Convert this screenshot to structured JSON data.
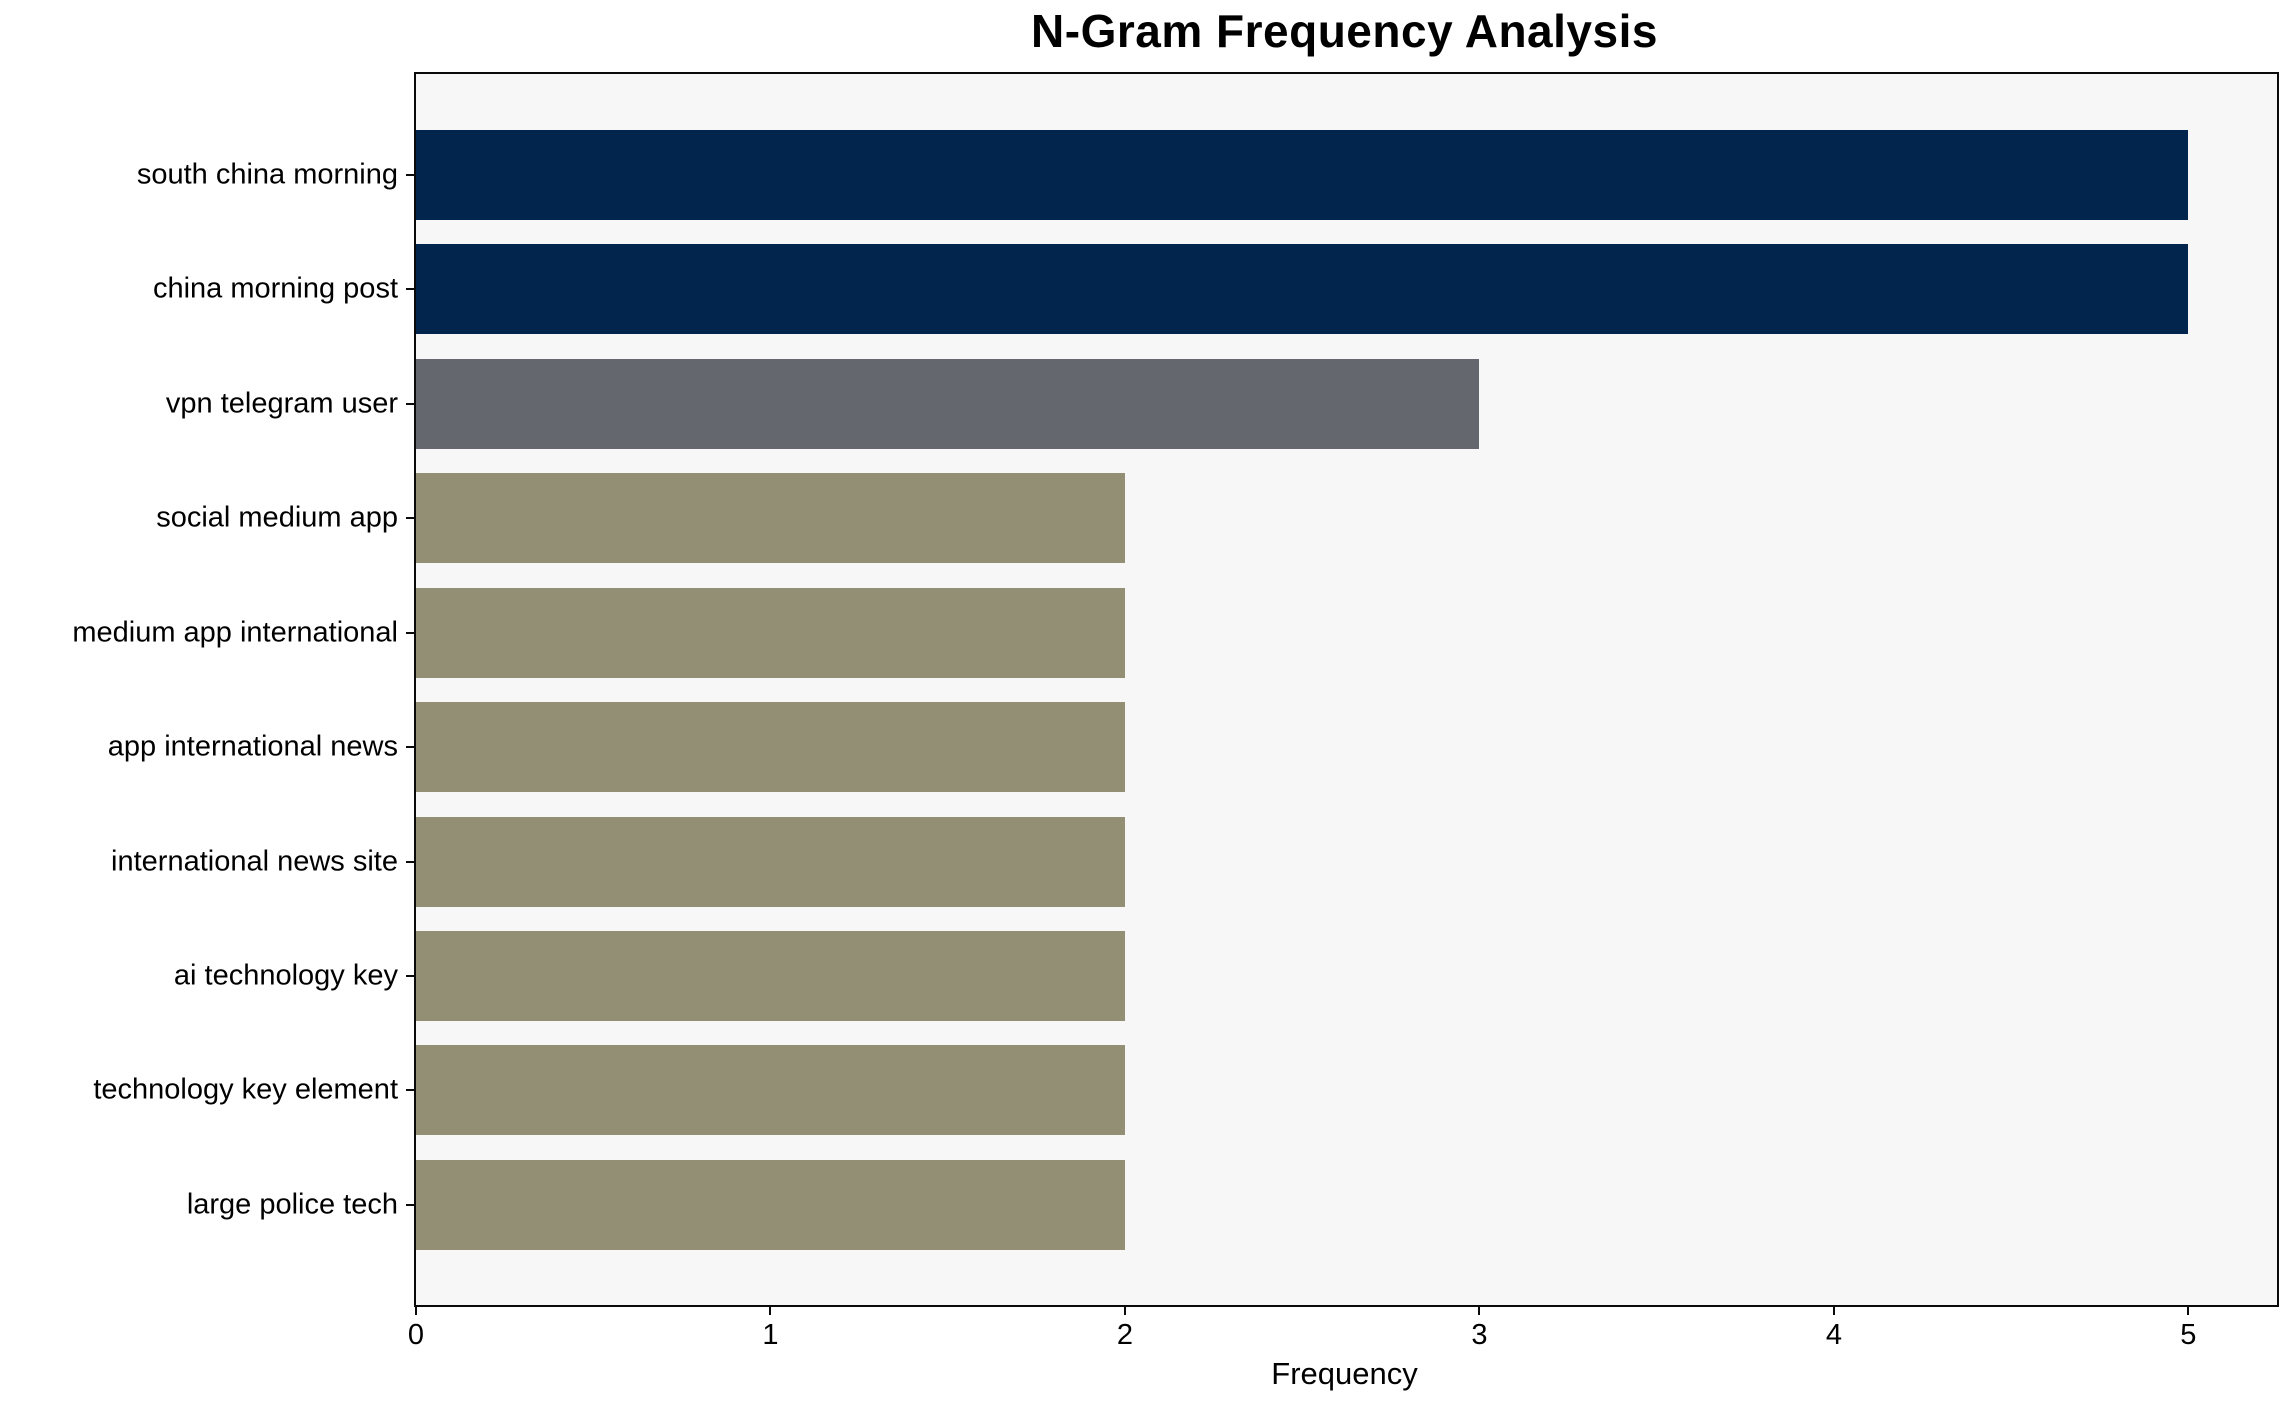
{
  "chart_data": {
    "type": "bar",
    "orientation": "horizontal",
    "title": "N-Gram Frequency Analysis",
    "xlabel": "Frequency",
    "ylabel": "",
    "categories": [
      "south china morning",
      "china morning post",
      "vpn telegram user",
      "social medium app",
      "medium app international",
      "app international news",
      "international news site",
      "ai technology key",
      "technology key element",
      "large police tech"
    ],
    "values": [
      5,
      5,
      3,
      2,
      2,
      2,
      2,
      2,
      2,
      2
    ],
    "bar_colors": [
      "#02254d",
      "#02254d",
      "#65676e",
      "#938f74",
      "#938f74",
      "#938f74",
      "#938f74",
      "#938f74",
      "#938f74",
      "#938f74"
    ],
    "xticks": [
      0,
      1,
      2,
      3,
      4,
      5
    ],
    "xlim": [
      0,
      5.25
    ],
    "grid": false,
    "legend": null,
    "plot_background": "#f7f7f7",
    "figure_background": "#ffffff",
    "spine_color": "#0a0a0a",
    "text_color": "#000000"
  }
}
